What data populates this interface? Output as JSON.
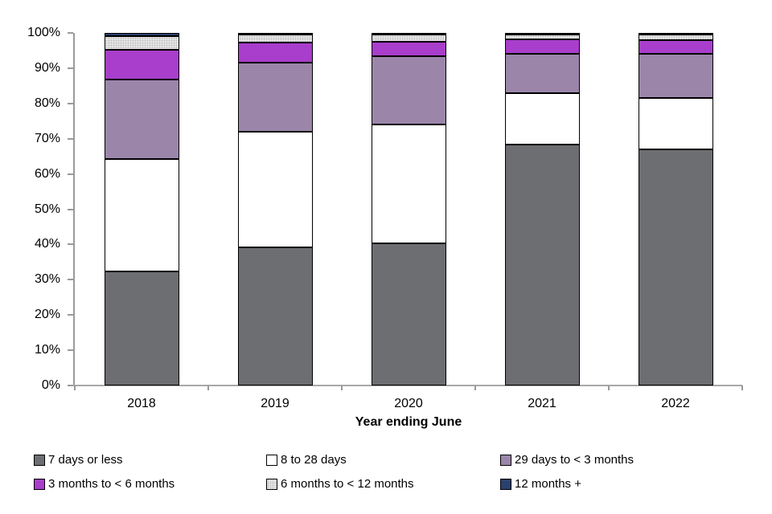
{
  "chart_data": {
    "type": "bar",
    "variant": "stacked-100-percent",
    "title": "",
    "xlabel": "Year ending June",
    "ylabel": "",
    "ylim": [
      0,
      100
    ],
    "grid": false,
    "legend_position": "bottom",
    "legend_rows": 2,
    "y_ticks": [
      "0%",
      "10%",
      "20%",
      "30%",
      "40%",
      "50%",
      "60%",
      "70%",
      "80%",
      "90%",
      "100%"
    ],
    "categories": [
      "2018",
      "2019",
      "2020",
      "2021",
      "2022"
    ],
    "series": [
      {
        "name": "7 days or less",
        "color": "#6d6e71",
        "textured": false,
        "values": [
          32.4,
          39.2,
          40.3,
          68.3,
          67.0
        ]
      },
      {
        "name": "8 to 28 days",
        "color": "#ffffff",
        "textured": false,
        "values": [
          31.9,
          32.7,
          33.8,
          14.6,
          14.5
        ]
      },
      {
        "name": "29 days to < 3 months",
        "color": "#9b86aa",
        "textured": false,
        "values": [
          22.5,
          19.7,
          19.4,
          11.2,
          12.6
        ]
      },
      {
        "name": "3 months to < 6 months",
        "color": "#a83ecb",
        "textured": false,
        "values": [
          8.5,
          5.6,
          4.0,
          4.1,
          3.9
        ]
      },
      {
        "name": "6 months to < 12 months",
        "color": "#e4e4e4",
        "textured": true,
        "values": [
          3.9,
          2.3,
          2.1,
          1.4,
          1.5
        ]
      },
      {
        "name": "12 months +",
        "color": "#2b406e",
        "textured": false,
        "values": [
          0.8,
          0.5,
          0.4,
          0.4,
          0.5
        ]
      }
    ]
  },
  "style_colors": {
    "axis_line": "#9a9a9a",
    "segment_border": "#000000",
    "text": "#000000",
    "background": "#ffffff"
  }
}
